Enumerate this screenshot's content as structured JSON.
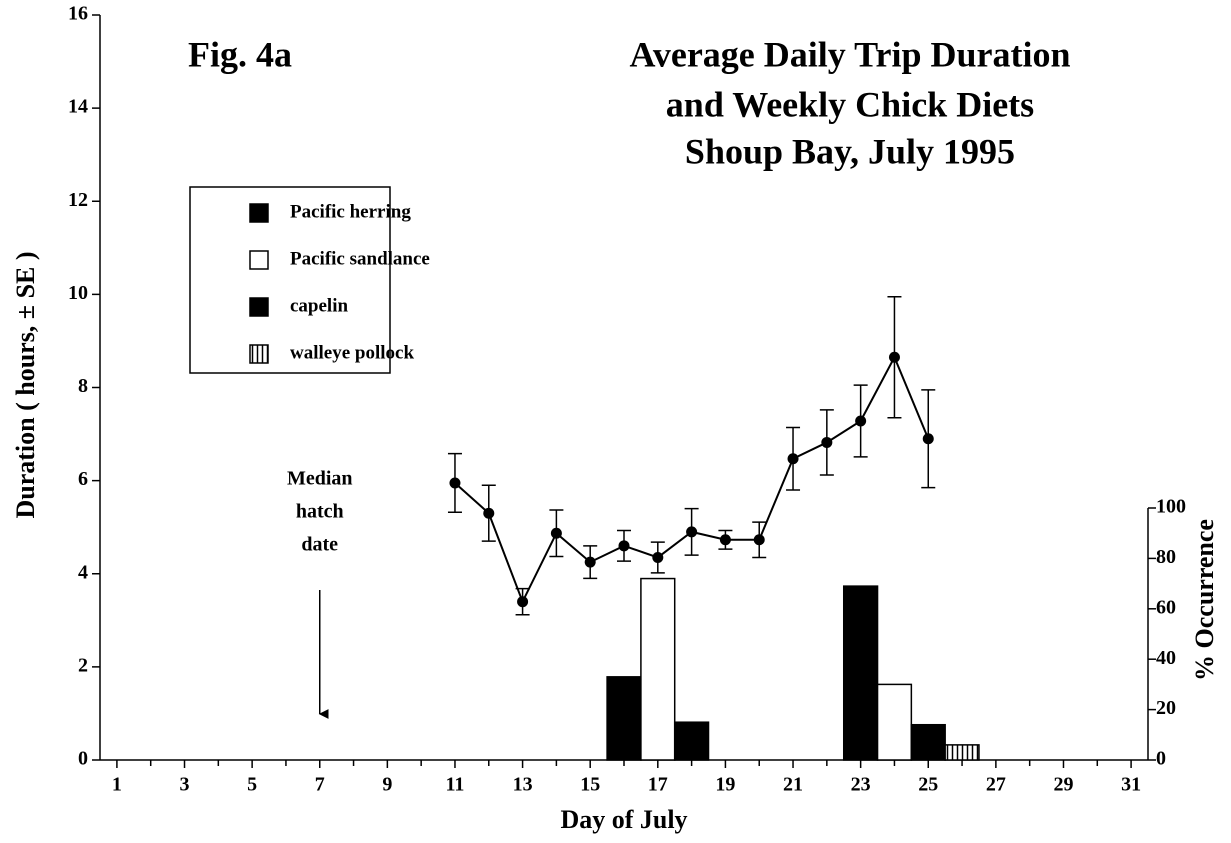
{
  "chart_data": {
    "type": "combo",
    "fig_label": "Fig. 4a",
    "title": [
      "Average Daily Trip Duration",
      "and Weekly Chick Diets",
      "Shoup Bay, July 1995"
    ],
    "xlabel": "Day of July",
    "ylabel": "Duration  ( hours, ± SE )",
    "y2label": "% Occurrence",
    "xlim": [
      0.5,
      31.5
    ],
    "xticks": [
      1,
      3,
      5,
      7,
      9,
      11,
      13,
      15,
      17,
      19,
      21,
      23,
      25,
      27,
      29,
      31
    ],
    "xminorticks": [
      2,
      4,
      6,
      8,
      10,
      12,
      14,
      16,
      18,
      20,
      22,
      24,
      26,
      28,
      30
    ],
    "ylim": [
      0,
      16
    ],
    "yticks": [
      0,
      2,
      4,
      6,
      8,
      10,
      12,
      14,
      16
    ],
    "y2lim": [
      0,
      100
    ],
    "y2ticks": [
      0,
      20,
      40,
      60,
      80,
      100
    ],
    "annotation": {
      "lines": [
        "Median",
        "hatch",
        "date"
      ],
      "x": 7
    },
    "series": [
      {
        "type": "line",
        "color": "#000000",
        "x": [
          11,
          12,
          13,
          14,
          15,
          16,
          17,
          18,
          19,
          20,
          21,
          22,
          23,
          24,
          25
        ],
        "values": [
          5.95,
          5.3,
          3.4,
          4.87,
          4.25,
          4.6,
          4.35,
          4.9,
          4.73,
          4.73,
          6.47,
          6.82,
          7.28,
          8.65,
          6.9
        ],
        "errors": [
          0.63,
          0.6,
          0.28,
          0.5,
          0.35,
          0.33,
          0.33,
          0.5,
          0.2,
          0.38,
          0.67,
          0.7,
          0.77,
          1.3,
          1.05
        ]
      },
      {
        "type": "bar",
        "name": "Pacific herring",
        "color": "#000000",
        "axis": "y2",
        "x": [
          16,
          23
        ],
        "values": [
          33,
          69
        ]
      },
      {
        "type": "bar",
        "name": "Pacific sandlance",
        "color": "#ffffff",
        "axis": "y2",
        "x": [
          17,
          24
        ],
        "values": [
          72,
          30
        ]
      },
      {
        "type": "bar",
        "name": "capelin",
        "color": "#000000",
        "axis": "y2",
        "x": [
          18,
          25
        ],
        "values": [
          15,
          14
        ]
      },
      {
        "type": "bar",
        "name": "walleye pollock",
        "color": "hatch",
        "axis": "y2",
        "x": [
          26
        ],
        "values": [
          6
        ]
      }
    ]
  }
}
